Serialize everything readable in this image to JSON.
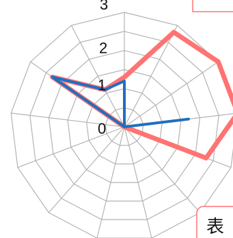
{
  "chart_data": {
    "type": "radar",
    "title": "",
    "axis_count": 13,
    "r_range": [
      0,
      3
    ],
    "r_ticks": [
      "0",
      "1",
      "2",
      "3"
    ],
    "grid": true,
    "series": [
      {
        "color": "#FF7373",
        "values": [
          1.3,
          2.8,
          3.0,
          3.0,
          2.3,
          0,
          0,
          0,
          0,
          0,
          0,
          2.3,
          1.1
        ]
      },
      {
        "color": "#1F6FBF",
        "values": [
          1.2,
          0,
          0,
          1.7,
          0,
          0,
          0,
          0,
          0,
          0,
          0,
          2.3,
          1.1
        ]
      }
    ],
    "legend": {
      "position": "bottom-right",
      "text": "表"
    }
  },
  "colors": {
    "grid": "#B3B3B3",
    "legend_border": "#FF7373"
  }
}
